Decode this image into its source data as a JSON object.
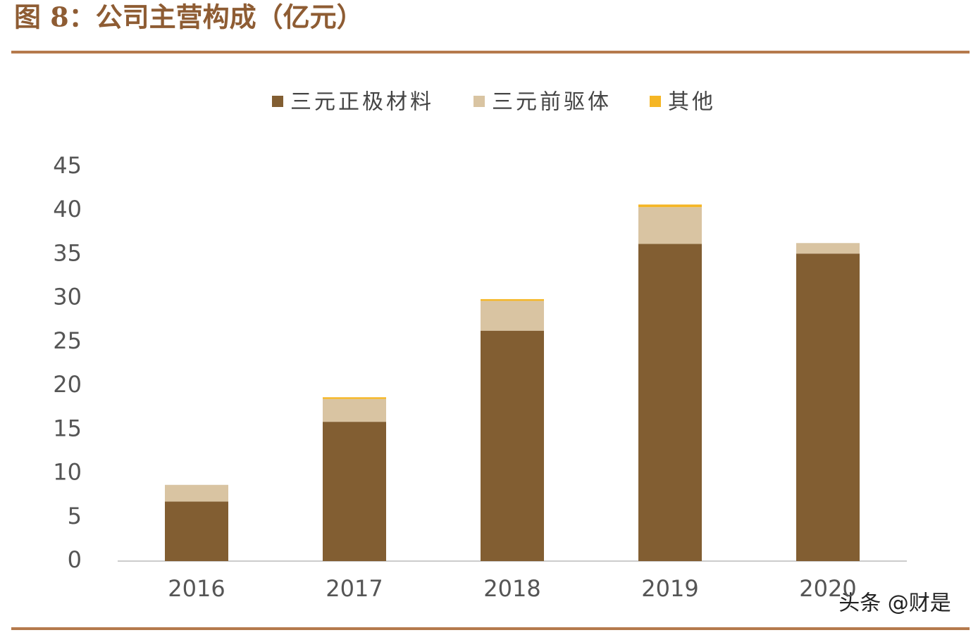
{
  "title": "图 8：公司主营构成（亿元）",
  "watermark": "头条 @财是",
  "chart_data": {
    "type": "stacked-bar",
    "categories": [
      "2016",
      "2017",
      "2018",
      "2019",
      "2020"
    ],
    "series": [
      {
        "name": "三元正极材料",
        "color": "#825e32",
        "values": [
          6.8,
          15.9,
          26.3,
          36.2,
          35.1
        ]
      },
      {
        "name": "三元前驱体",
        "color": "#d9c4a2",
        "values": [
          1.9,
          2.6,
          3.4,
          4.2,
          1.2
        ]
      },
      {
        "name": "其他",
        "color": "#f5b625",
        "values": [
          0,
          0.2,
          0.2,
          0.3,
          0
        ]
      }
    ],
    "ylim": [
      0,
      45
    ],
    "yticks": [
      0,
      5,
      10,
      15,
      20,
      25,
      30,
      35,
      40,
      45
    ],
    "legend": "top"
  }
}
